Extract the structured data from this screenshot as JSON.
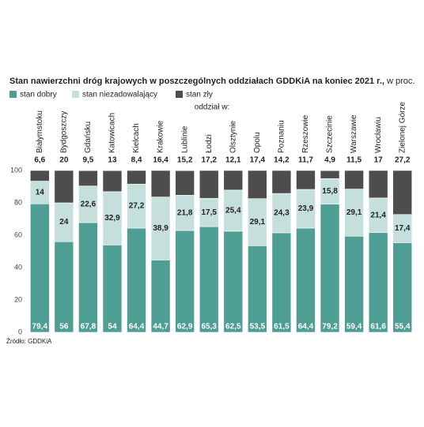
{
  "chart_data": {
    "type": "stacked_bar",
    "title": "Stan nawierzchni dróg krajowych w poszczególnych oddziałach GDDKiA na koniec 2021 r.,",
    "subtitle": "w proc.",
    "x_label": "oddział w:",
    "source": "Źródło: GDDKiA",
    "categories": [
      "Białymstoku",
      "Bydgoszczy",
      "Gdańsku",
      "Katowicach",
      "Kielcach",
      "Krakowie",
      "Lublinie",
      "Łodzi",
      "Olsztynie",
      "Opolu",
      "Poznaniu",
      "Rzeszowie",
      "Szczecinie",
      "Warszawie",
      "Wrocławiu",
      "Zielonej Górze"
    ],
    "series": [
      {
        "name": "stan dobry",
        "color": "#4f9e93",
        "values": [
          79.4,
          56,
          67.8,
          54,
          64.4,
          44.7,
          62.9,
          65.3,
          62.5,
          53.5,
          61.5,
          64.4,
          79.2,
          59.4,
          61.6,
          55.4
        ],
        "value_labels": [
          "79,4",
          "56",
          "67,8",
          "54",
          "64,4",
          "44,7",
          "62,9",
          "65,3",
          "62,5",
          "53,5",
          "61,5",
          "64,4",
          "79,2",
          "59,4",
          "61,6",
          "55,4"
        ]
      },
      {
        "name": "stan niezadowalający",
        "color": "#c5e0dc",
        "values": [
          14,
          24,
          22.6,
          32.9,
          27.2,
          38.9,
          21.8,
          17.5,
          25.4,
          29.1,
          24.3,
          23.9,
          15.8,
          29.1,
          21.4,
          17.4
        ],
        "value_labels": [
          "14",
          "24",
          "22,6",
          "32,9",
          "27,2",
          "38,9",
          "21,8",
          "17,5",
          "25,4",
          "29,1",
          "24,3",
          "23,9",
          "15,8",
          "29,1",
          "21,4",
          "17,4"
        ]
      },
      {
        "name": "stan zły",
        "color": "#4d4d4d",
        "values": [
          6.6,
          20,
          9.5,
          13,
          8.4,
          16.4,
          15.2,
          17.2,
          12.1,
          17.4,
          14.2,
          11.7,
          4.9,
          11.5,
          17,
          27.2
        ],
        "value_labels": [
          "6,6",
          "20",
          "9,5",
          "13",
          "8,4",
          "16,4",
          "15,2",
          "17,2",
          "12,1",
          "17,4",
          "14,2",
          "11,7",
          "4,9",
          "11,5",
          "17",
          "27,2"
        ]
      }
    ],
    "ylim": [
      0,
      100
    ],
    "yticks": [
      0,
      20,
      40,
      60,
      80,
      100
    ],
    "grid": false
  }
}
